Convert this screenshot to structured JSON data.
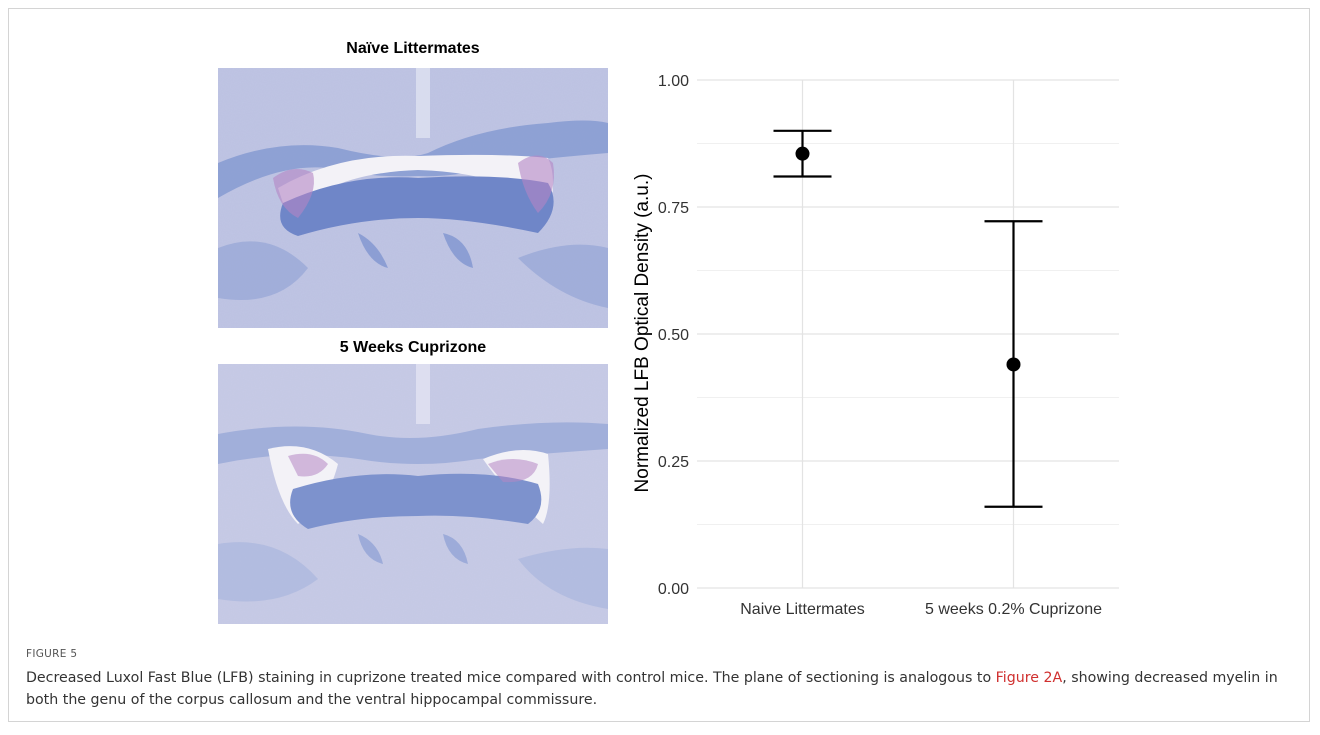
{
  "figure": {
    "images": [
      {
        "title": "Naïve Littermates",
        "alt": "LFB stained coronal section, naive littermate"
      },
      {
        "title": "5 Weeks Cuprizone",
        "alt": "LFB stained coronal section, 5 weeks cuprizone"
      }
    ],
    "label": "FIGURE 5",
    "caption": {
      "part1": "Decreased Luxol Fast Blue (LFB) staining in cuprizone treated mice compared with control mice. The plane of sectioning is analogous to ",
      "link": "Figure 2A",
      "part2": ", showing decreased myelin in both the genu of the corpus callosum and the ventral hippocampal commissure."
    },
    "colors": {
      "link": "#d0302f",
      "stain_bg": "#b9bedf",
      "stain_dark": "#6f86c8",
      "stain_pink": "#b486c4"
    }
  },
  "chart_data": {
    "type": "scatter",
    "subtype": "point-with-error-bars",
    "categories": [
      "Naive Littermates",
      "5 weeks 0.2% Cuprizone"
    ],
    "series": [
      {
        "values": [
          0.855,
          0.44
        ],
        "error_lower": [
          0.81,
          0.16
        ],
        "error_upper": [
          0.9,
          0.722
        ]
      }
    ],
    "ylabel": "Normalized LFB Optical Density (a.u.)",
    "xlabel": "",
    "ylim": [
      0,
      1
    ],
    "yticks": [
      0,
      0.25,
      0.5,
      0.75,
      1
    ],
    "ytick_labels": [
      "0.00",
      "0.25",
      "0.50",
      "0.75",
      "1.00"
    ],
    "grid": true,
    "legend": "none"
  }
}
